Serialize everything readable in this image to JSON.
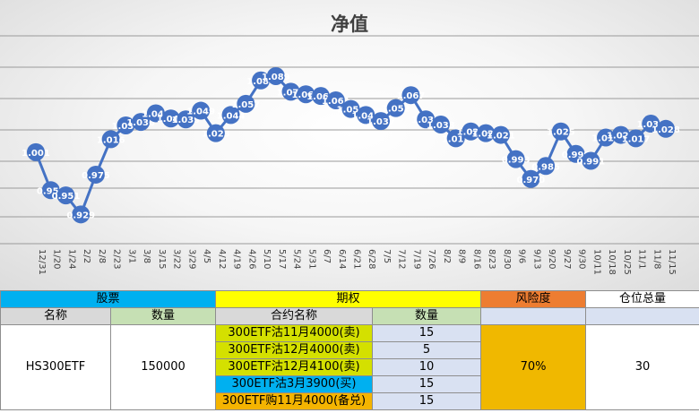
{
  "chart_data": {
    "type": "line",
    "title": "净值",
    "categories": [
      "12/31",
      "1/20",
      "1/24",
      "2/2",
      "2/8",
      "2/23",
      "3/1",
      "3/8",
      "3/15",
      "3/22",
      "3/29",
      "4/5",
      "4/12",
      "4/19",
      "4/26",
      "5/10",
      "5/17",
      "5/24",
      "5/31",
      "6/7",
      "6/14",
      "6/21",
      "6/28",
      "7/5",
      "7/12",
      "7/19",
      "7/26",
      "8/2",
      "8/9",
      "8/16",
      "8/23",
      "8/30",
      "9/6",
      "9/13",
      "9/20",
      "9/27",
      "9/30",
      "10/11",
      "10/18",
      "10/25",
      "11/1",
      "11/8",
      "11/15"
    ],
    "values": [
      1.001,
      0.957,
      0.951,
      0.929,
      0.975,
      1.016,
      1.032,
      1.036,
      1.046,
      1.04,
      1.039,
      1.049,
      1.023,
      1.044,
      1.057,
      1.084,
      1.089,
      1.071,
      1.068,
      1.066,
      1.061,
      1.051,
      1.044,
      1.037,
      1.052,
      1.067,
      1.039,
      1.033,
      1.017,
      1.025,
      1.023,
      1.021,
      0.993,
      0.97,
      0.985,
      1.025,
      0.999,
      0.991,
      1.018,
      1.021,
      1.017,
      1.034,
      1.028
    ],
    "labels": [
      "1.001",
      "0.957",
      "0.951",
      "0.929",
      "0.975",
      "1.016",
      "1.032",
      "1.036",
      "1.046",
      "1.040",
      "1.039",
      "1.049",
      "1.023",
      "1.044",
      "1.057",
      "1.084",
      "1.089",
      "1.071",
      "1.068",
      "1.066",
      "1.061",
      "1.051",
      "1.044",
      "1.037",
      "1.052",
      "1.067",
      "1.039",
      "1.033",
      "1.017",
      "1.025",
      "1.023",
      "1.021",
      "0.993",
      "0.970",
      "0.985",
      "1.025",
      "0.999",
      "0.991",
      "1.018",
      "1.021",
      "1.017",
      "1.034",
      "1.028"
    ],
    "line_color": "#4472c4",
    "grid": true,
    "legend": "none"
  },
  "table": {
    "group_headers": {
      "stock": "股票",
      "option": "期权",
      "risk": "风险度",
      "position": "仓位总量"
    },
    "sub_headers": {
      "name": "名称",
      "quantity": "数量",
      "contract": "合约名称",
      "contract_qty": "数量"
    },
    "stock": {
      "name": "HS300ETF",
      "quantity": "150000"
    },
    "options": [
      {
        "contract": "300ETF沽11月4000(卖)",
        "qty": "15",
        "color": "#d4e000"
      },
      {
        "contract": "300ETF沽12月4000(卖)",
        "qty": "5",
        "color": "#d4e000"
      },
      {
        "contract": "300ETF沽12月4100(卖)",
        "qty": "10",
        "color": "#d4e000"
      },
      {
        "contract": "300ETF沽3月3900(买)",
        "qty": "15",
        "color": "#00b0f0"
      },
      {
        "contract": "300ETF购11月4000(备兑)",
        "qty": "15",
        "color": "#f4b400"
      }
    ],
    "risk": "70%",
    "position": "30"
  }
}
